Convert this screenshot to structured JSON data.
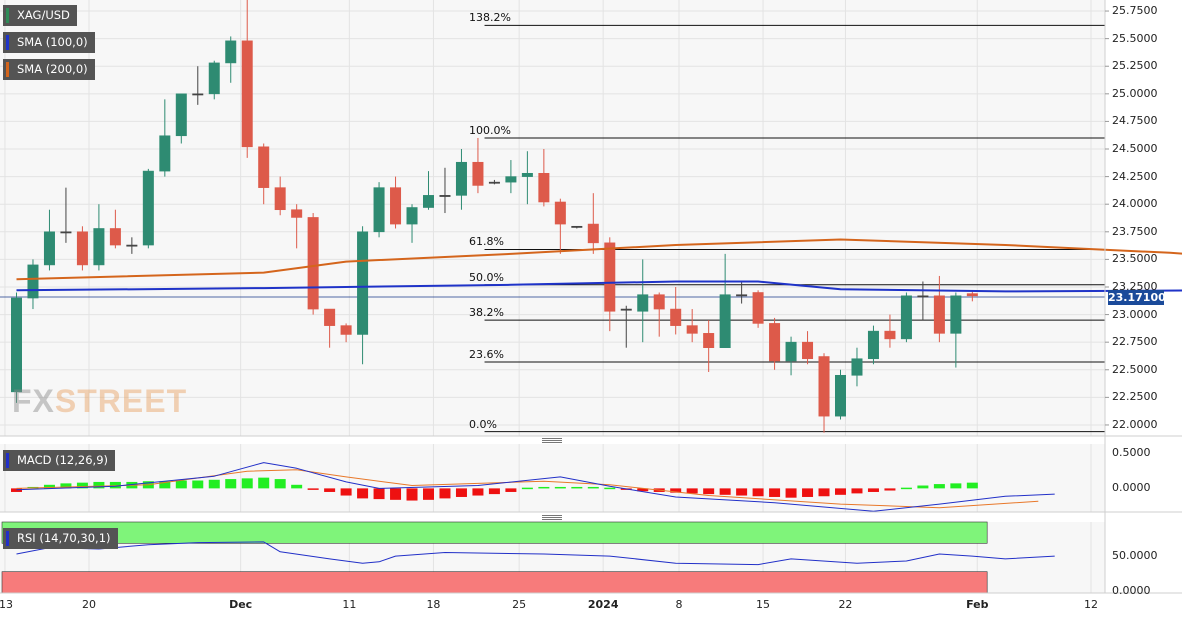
{
  "chart_data": [
    {
      "type": "candlestick",
      "title": "XAG/USD",
      "legend": [
        {
          "label": "XAG/USD",
          "color": "#2e8b57"
        },
        {
          "label": "SMA (100,0)",
          "color": "#1f33c8"
        },
        {
          "label": "SMA (200,0)",
          "color": "#d4651c"
        }
      ],
      "ylim": [
        21.9,
        25.85
      ],
      "y_ticks": [
        "25.7500",
        "25.5000",
        "25.2500",
        "25.0000",
        "24.7500",
        "24.5000",
        "24.2500",
        "24.0000",
        "23.7500",
        "23.5000",
        "23.2500",
        "23.0000",
        "22.7500",
        "22.5000",
        "22.2500",
        "22.0000"
      ],
      "last_price": "23.17100",
      "x_ticks": [
        "13",
        "20",
        "Dec",
        "11",
        "18",
        "25",
        "2024",
        "8",
        "15",
        "22",
        "Feb",
        "12"
      ],
      "candles": [
        [
          22.3,
          23.15,
          22.2,
          23.2
        ],
        [
          23.15,
          23.45,
          23.05,
          23.5
        ],
        [
          23.45,
          23.75,
          23.4,
          23.95
        ],
        [
          23.75,
          23.75,
          23.65,
          24.15
        ],
        [
          23.75,
          23.45,
          23.4,
          23.8
        ],
        [
          23.45,
          23.78,
          23.4,
          24.0
        ],
        [
          23.78,
          23.63,
          23.6,
          23.95
        ],
        [
          23.63,
          23.63,
          23.55,
          23.7
        ],
        [
          23.63,
          24.3,
          23.6,
          24.32
        ],
        [
          24.3,
          24.62,
          24.25,
          24.95
        ],
        [
          24.62,
          25.0,
          24.55,
          25.0
        ],
        [
          25.0,
          25.0,
          24.9,
          25.25
        ],
        [
          25.0,
          25.28,
          24.95,
          25.3
        ],
        [
          25.28,
          25.48,
          25.1,
          25.52
        ],
        [
          25.48,
          24.52,
          24.42,
          25.9
        ],
        [
          24.52,
          24.15,
          24.0,
          24.55
        ],
        [
          24.15,
          23.95,
          23.9,
          24.25
        ],
        [
          23.95,
          23.88,
          23.6,
          24.0
        ],
        [
          23.88,
          23.05,
          23.0,
          23.92
        ],
        [
          23.05,
          22.9,
          22.7,
          23.05
        ],
        [
          22.9,
          22.82,
          22.75,
          22.92
        ],
        [
          22.82,
          23.75,
          22.55,
          23.8
        ],
        [
          23.75,
          24.15,
          23.7,
          24.2
        ],
        [
          24.15,
          23.82,
          23.78,
          24.25
        ],
        [
          23.82,
          23.97,
          23.65,
          24.0
        ],
        [
          23.97,
          24.08,
          23.95,
          24.3
        ],
        [
          24.08,
          24.08,
          23.92,
          24.33
        ],
        [
          24.08,
          24.38,
          23.95,
          24.5
        ],
        [
          24.38,
          24.17,
          24.1,
          24.6
        ],
        [
          24.2,
          24.2,
          24.18,
          24.22
        ],
        [
          24.2,
          24.25,
          24.1,
          24.4
        ],
        [
          24.25,
          24.28,
          24.0,
          24.48
        ],
        [
          24.28,
          24.02,
          23.98,
          24.5
        ],
        [
          24.02,
          23.82,
          23.55,
          24.05
        ],
        [
          23.8,
          23.8,
          23.78,
          23.8
        ],
        [
          23.82,
          23.65,
          23.55,
          24.1
        ],
        [
          23.65,
          23.03,
          22.85,
          23.7
        ],
        [
          23.05,
          23.05,
          22.7,
          23.08
        ],
        [
          23.03,
          23.18,
          22.75,
          23.5
        ],
        [
          23.18,
          23.05,
          22.8,
          23.2
        ],
        [
          23.05,
          22.9,
          22.82,
          23.25
        ],
        [
          22.9,
          22.83,
          22.75,
          23.05
        ],
        [
          22.83,
          22.7,
          22.48,
          22.95
        ],
        [
          22.7,
          23.18,
          22.7,
          23.55
        ],
        [
          23.18,
          23.18,
          23.1,
          23.3
        ],
        [
          23.2,
          22.92,
          22.88,
          23.22
        ],
        [
          22.92,
          22.58,
          22.5,
          22.97
        ],
        [
          22.58,
          22.75,
          22.45,
          22.8
        ],
        [
          22.75,
          22.6,
          22.55,
          22.85
        ],
        [
          22.62,
          22.08,
          21.93,
          22.65
        ],
        [
          22.08,
          22.45,
          22.05,
          22.5
        ],
        [
          22.45,
          22.6,
          22.35,
          22.7
        ],
        [
          22.6,
          22.85,
          22.55,
          22.9
        ],
        [
          22.85,
          22.78,
          22.7,
          23.0
        ],
        [
          22.78,
          23.17,
          22.75,
          23.2
        ],
        [
          23.17,
          23.17,
          22.95,
          23.3
        ],
        [
          23.17,
          22.83,
          22.75,
          23.35
        ],
        [
          22.83,
          23.17,
          22.52,
          23.2
        ],
        [
          23.19,
          23.17,
          23.12,
          23.22
        ]
      ],
      "fibonacci": [
        {
          "label": "138.2%",
          "value": 25.62
        },
        {
          "label": "100.0%",
          "value": 24.6
        },
        {
          "label": "61.8%",
          "value": 23.59
        },
        {
          "label": "50.0%",
          "value": 23.27
        },
        {
          "label": "38.2%",
          "value": 22.95
        },
        {
          "label": "23.6%",
          "value": 22.57
        },
        {
          "label": "0.0%",
          "value": 21.94
        }
      ],
      "sma100": [
        [
          0,
          23.22
        ],
        [
          15,
          23.24
        ],
        [
          30,
          23.27
        ],
        [
          40,
          23.3
        ],
        [
          45,
          23.3
        ],
        [
          50,
          23.23
        ],
        [
          60,
          23.21
        ],
        [
          73,
          23.22
        ]
      ],
      "sma200": [
        [
          0,
          23.32
        ],
        [
          15,
          23.38
        ],
        [
          20,
          23.48
        ],
        [
          30,
          23.55
        ],
        [
          40,
          23.63
        ],
        [
          50,
          23.68
        ],
        [
          60,
          23.63
        ],
        [
          70,
          23.56
        ],
        [
          73,
          23.53
        ]
      ]
    },
    {
      "type": "bar+line",
      "title": "MACD (12,26,9)",
      "ylim": [
        -0.33,
        0.62
      ],
      "y_ticks": [
        "0.5000",
        "0.0000"
      ],
      "histogram": [
        -0.05,
        0.02,
        0.05,
        0.07,
        0.08,
        0.09,
        0.09,
        0.09,
        0.1,
        0.1,
        0.11,
        0.11,
        0.12,
        0.13,
        0.14,
        0.15,
        0.13,
        0.05,
        -0.01,
        -0.05,
        -0.1,
        -0.14,
        -0.15,
        -0.16,
        -0.17,
        -0.16,
        -0.14,
        -0.12,
        -0.1,
        -0.08,
        -0.05,
        0.01,
        0.02,
        0.02,
        0.02,
        0.02,
        0.01,
        -0.01,
        -0.04,
        -0.05,
        -0.06,
        -0.07,
        -0.08,
        -0.09,
        -0.1,
        -0.11,
        -0.12,
        -0.13,
        -0.12,
        -0.11,
        -0.09,
        -0.07,
        -0.05,
        -0.03,
        0.01,
        0.04,
        0.06,
        0.07,
        0.08
      ],
      "macd": [
        [
          0,
          -0.02
        ],
        [
          6,
          0.03
        ],
        [
          12,
          0.17
        ],
        [
          15,
          0.36
        ],
        [
          17,
          0.28
        ],
        [
          20,
          0.09
        ],
        [
          22,
          0.0
        ],
        [
          28,
          0.04
        ],
        [
          33,
          0.16
        ],
        [
          36,
          0.03
        ],
        [
          40,
          -0.12
        ],
        [
          46,
          -0.2
        ],
        [
          52,
          -0.32
        ],
        [
          56,
          -0.22
        ],
        [
          60,
          -0.11
        ],
        [
          63,
          -0.08
        ]
      ],
      "signal": [
        [
          0,
          0.0
        ],
        [
          8,
          0.05
        ],
        [
          14,
          0.24
        ],
        [
          17,
          0.26
        ],
        [
          20,
          0.16
        ],
        [
          24,
          0.04
        ],
        [
          32,
          0.1
        ],
        [
          36,
          0.05
        ],
        [
          42,
          -0.1
        ],
        [
          50,
          -0.22
        ],
        [
          56,
          -0.27
        ],
        [
          62,
          -0.18
        ]
      ]
    },
    {
      "type": "line",
      "title": "RSI (14,70,30,1)",
      "ylim": [
        0,
        100
      ],
      "y_ticks": [
        "50.0000",
        "0.0000"
      ],
      "overbought": 70,
      "oversold": 30,
      "rsi": [
        [
          0,
          55
        ],
        [
          2,
          64
        ],
        [
          5,
          62
        ],
        [
          8,
          68
        ],
        [
          11,
          71
        ],
        [
          15,
          72
        ],
        [
          16,
          58
        ],
        [
          19,
          48
        ],
        [
          21,
          42
        ],
        [
          22,
          44
        ],
        [
          23,
          52
        ],
        [
          26,
          57
        ],
        [
          32,
          55
        ],
        [
          36,
          52
        ],
        [
          40,
          42
        ],
        [
          45,
          40
        ],
        [
          47,
          48
        ],
        [
          51,
          42
        ],
        [
          54,
          45
        ],
        [
          56,
          55
        ],
        [
          58,
          52
        ],
        [
          60,
          48
        ],
        [
          63,
          52
        ]
      ]
    }
  ]
}
